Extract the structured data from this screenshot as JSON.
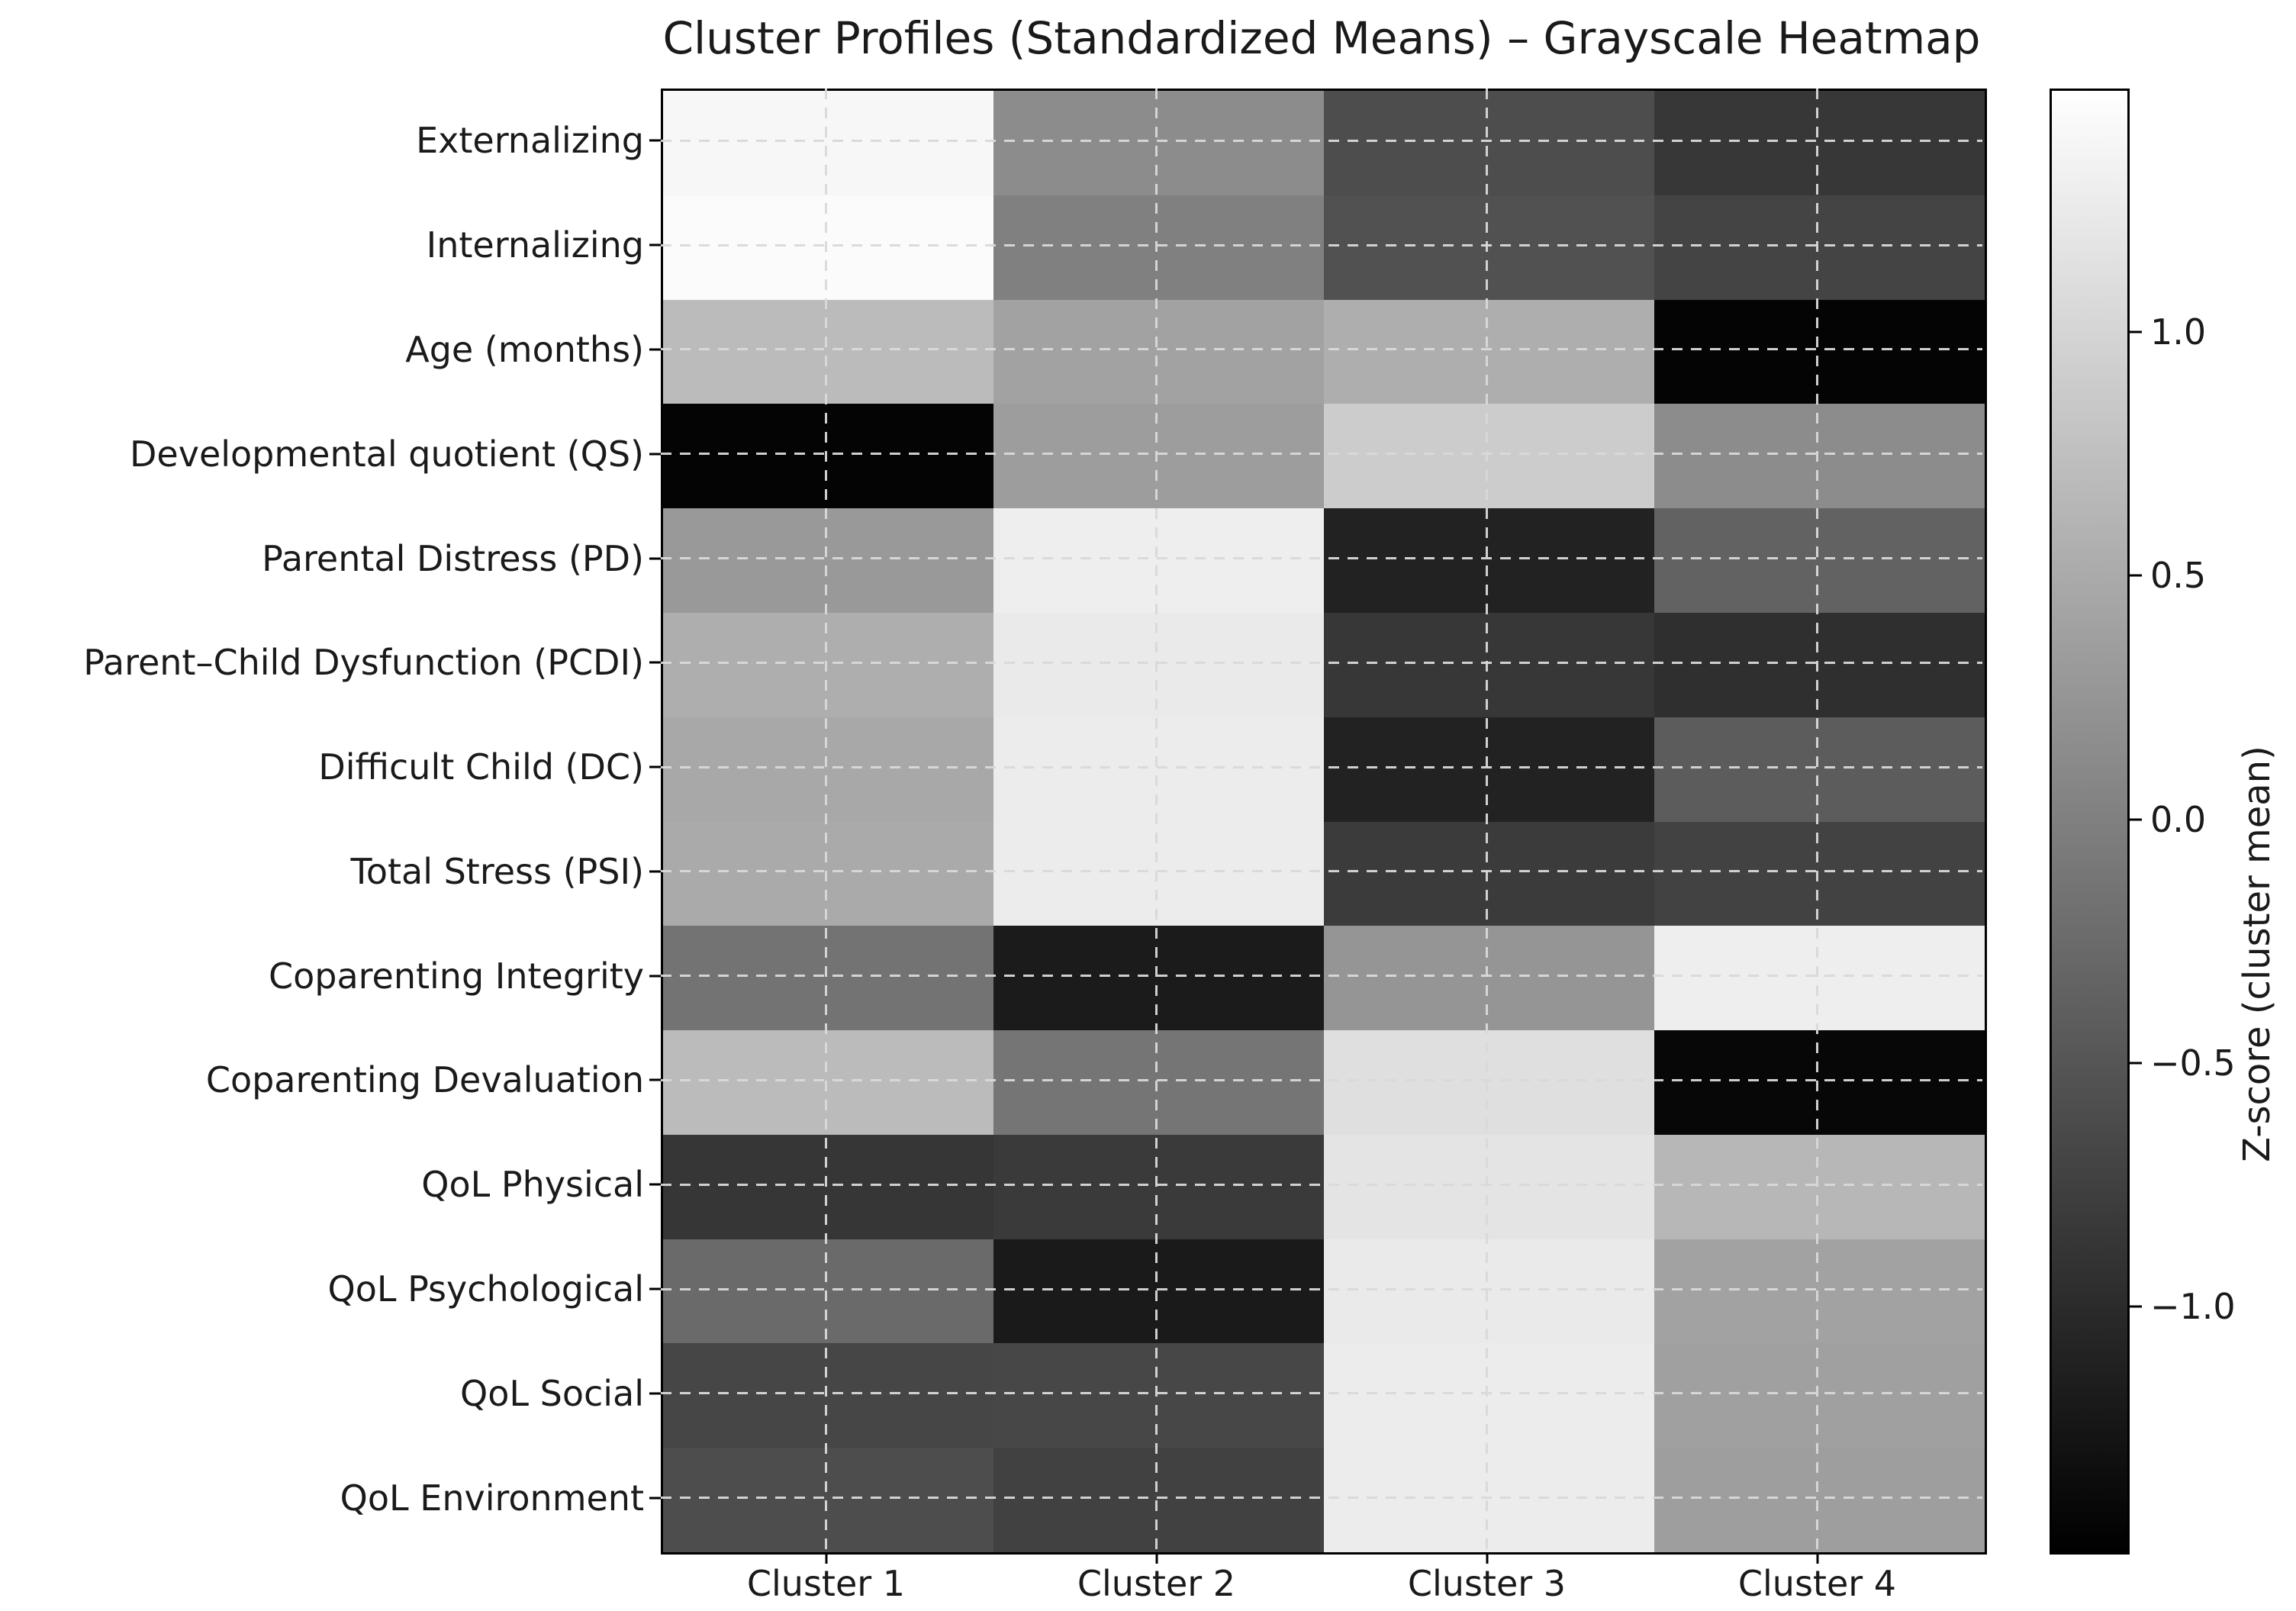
{
  "chart_data": {
    "type": "heatmap",
    "title": "Cluster Profiles (Standardized Means) – Grayscale Heatmap",
    "rows": [
      "Externalizing",
      "Internalizing",
      "Age (months)",
      "Developmental quotient (QS)",
      "Parental Distress (PD)",
      "Parent–Child Dysfunction (PCDI)",
      "Difficult Child (DC)",
      "Total Stress (PSI)",
      "Coparenting Integrity",
      "Coparenting Devaluation",
      "QoL Physical",
      "QoL Psychological",
      "QoL Social",
      "QoL Environment"
    ],
    "columns": [
      "Cluster 1",
      "Cluster 2",
      "Cluster 3",
      "Cluster 4"
    ],
    "values": [
      [
        1.4,
        0.15,
        -0.6,
        -0.85
      ],
      [
        1.45,
        0.0,
        -0.55,
        -0.7
      ],
      [
        0.7,
        0.4,
        0.55,
        -1.45
      ],
      [
        -1.45,
        0.35,
        0.9,
        0.15
      ],
      [
        0.3,
        1.3,
        -1.1,
        -0.35
      ],
      [
        0.55,
        1.25,
        -0.85,
        -0.95
      ],
      [
        0.48,
        1.28,
        -1.1,
        -0.42
      ],
      [
        0.5,
        1.28,
        -0.8,
        -0.72
      ],
      [
        -0.15,
        -1.18,
        0.25,
        1.3
      ],
      [
        0.7,
        -0.12,
        1.12,
        -1.42
      ],
      [
        -0.86,
        -0.82,
        1.18,
        0.65
      ],
      [
        -0.25,
        -1.2,
        1.25,
        0.4
      ],
      [
        -0.68,
        -0.66,
        1.28,
        0.38
      ],
      [
        -0.6,
        -0.73,
        1.28,
        0.36
      ]
    ],
    "colormap": "gray",
    "vmin": -1.5,
    "vmax": 1.5,
    "grid": "dashed light-gray lines at cell centers",
    "legend_position": "right",
    "colorbar": {
      "label": "Z-score (cluster mean)",
      "ticks": [
        {
          "value": 1.0,
          "label": "1.0"
        },
        {
          "value": 0.5,
          "label": "0.5"
        },
        {
          "value": 0.0,
          "label": "0.0"
        },
        {
          "value": -0.5,
          "label": "−0.5"
        },
        {
          "value": -1.0,
          "label": "−1.0"
        }
      ]
    }
  }
}
